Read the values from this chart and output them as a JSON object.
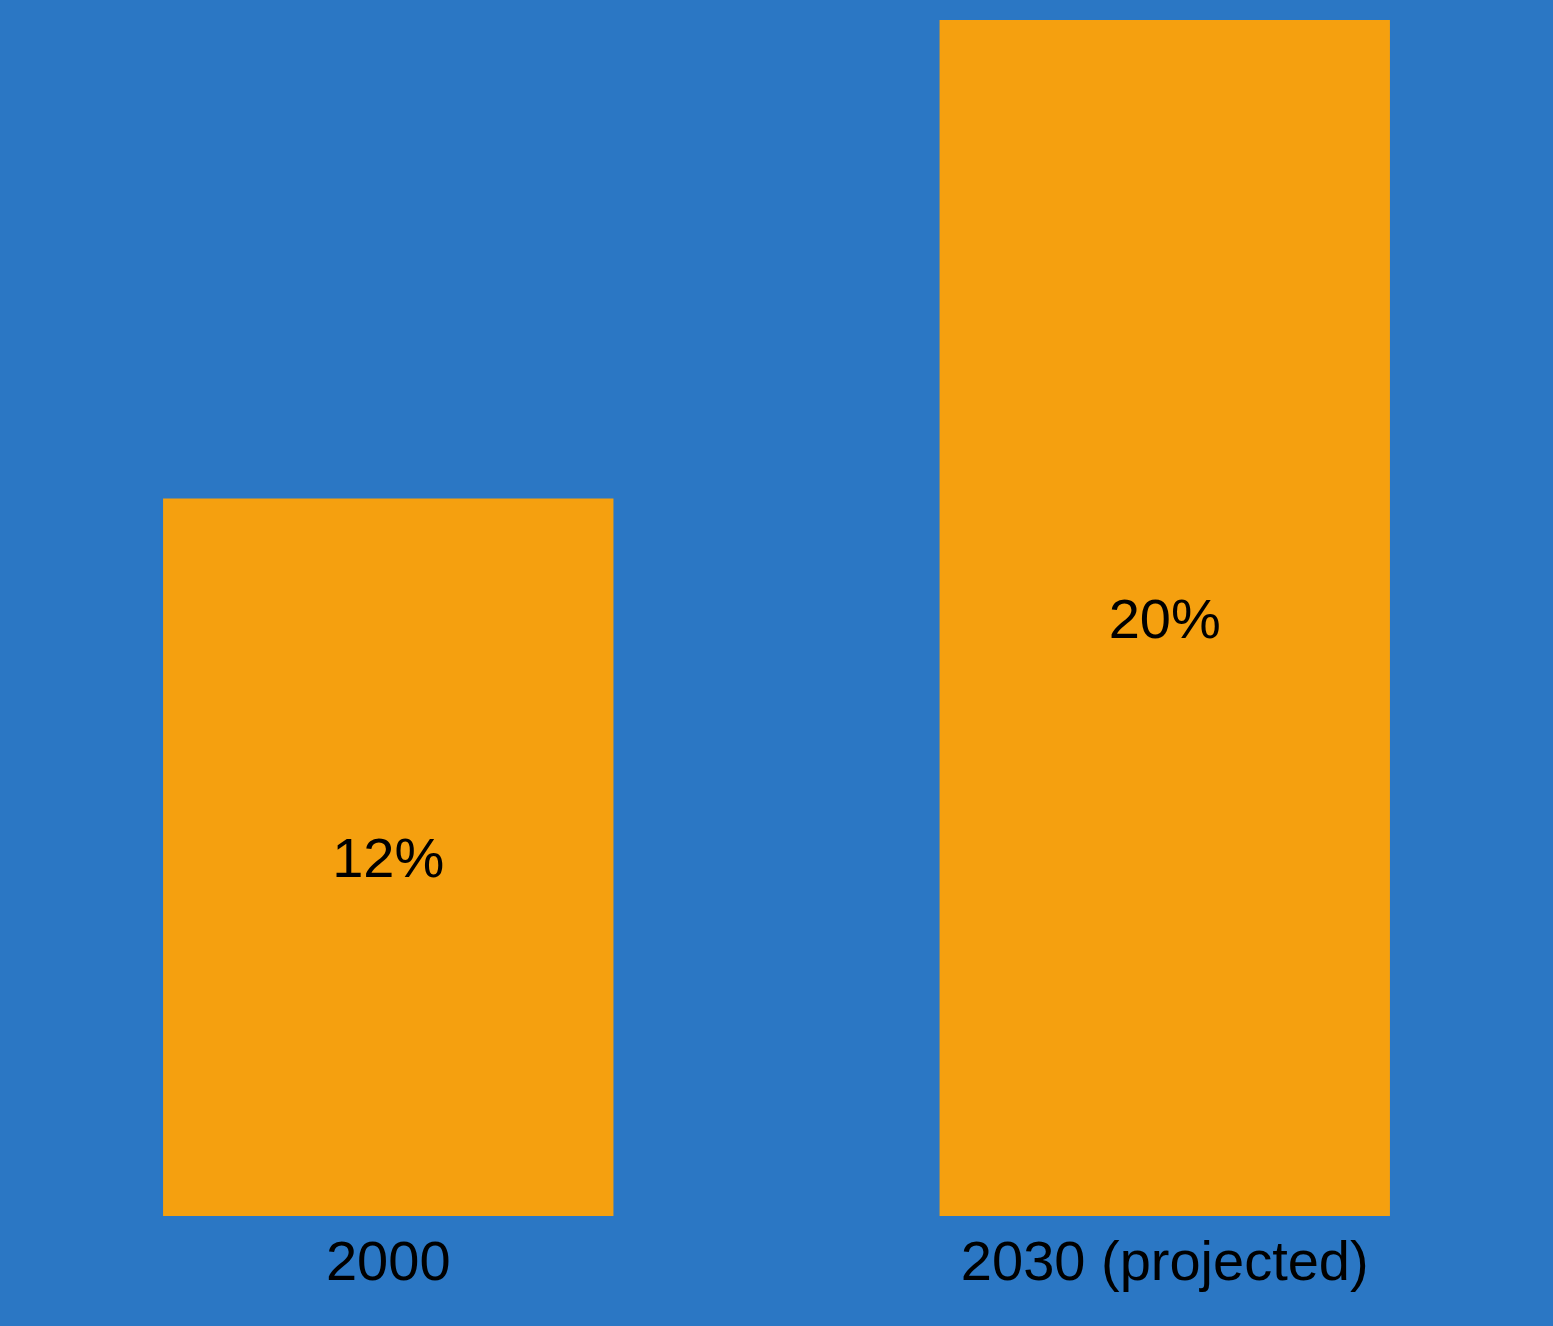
{
  "chart_data": {
    "type": "bar",
    "categories": [
      "2000",
      "2030 (projected)"
    ],
    "values": [
      12,
      20
    ],
    "value_labels": [
      "12%",
      "20%"
    ],
    "color": "#f5a00f"
  }
}
